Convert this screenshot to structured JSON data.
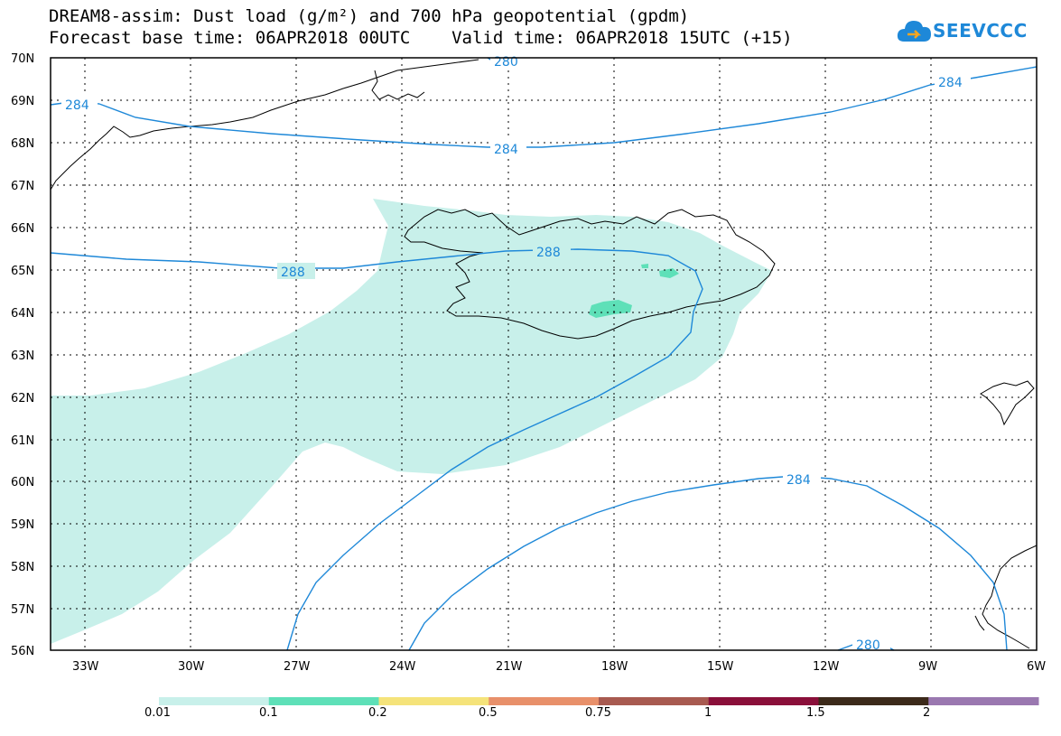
{
  "title_line1": "DREAM8-assim: Dust load (g/m²) and 700 hPa geopotential (gpdm)",
  "title_line2": "Forecast base time: 06APR2018 00UTC    Valid time: 06APR2018 15UTC (+15)",
  "logo_text": "SEEVCCC",
  "lat_labels": [
    "70N",
    "69N",
    "68N",
    "67N",
    "66N",
    "65N",
    "64N",
    "63N",
    "62N",
    "61N",
    "60N",
    "59N",
    "58N",
    "57N",
    "56N"
  ],
  "lon_labels": [
    "33W",
    "30W",
    "27W",
    "24W",
    "21W",
    "18W",
    "15W",
    "12W",
    "9W",
    "6W"
  ],
  "contour_labels": [
    "284",
    "284",
    "284",
    "288",
    "288",
    "280",
    "284",
    "280"
  ],
  "colorbar": {
    "colors": [
      "#c8f0ea",
      "#5ee0b8",
      "#f5e37a",
      "#e8906a",
      "#a85a50",
      "#8a0f3a",
      "#3c2a1a",
      "#9a78b0"
    ],
    "labels": [
      "0.01",
      "0.1",
      "0.2",
      "0.5",
      "0.75",
      "1",
      "1.5",
      "2"
    ]
  }
}
